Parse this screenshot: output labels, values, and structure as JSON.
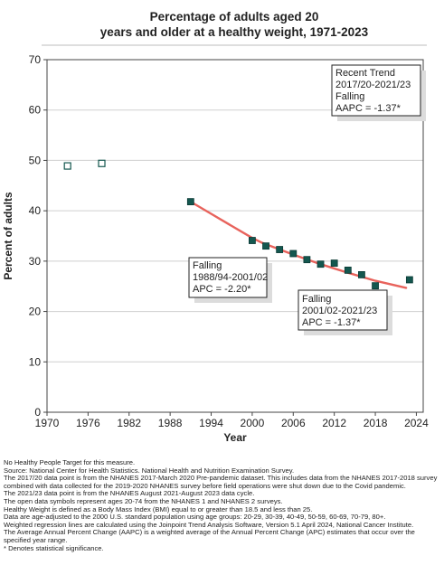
{
  "chart_data": {
    "type": "line",
    "title_lines": [
      "Percentage of adults aged 20",
      "years and older at a healthy weight, 1971-2023"
    ],
    "xlabel": "Year",
    "ylabel": "Percent of adults",
    "xlim": [
      1970,
      2025
    ],
    "ylim": [
      0,
      70
    ],
    "x_ticks": [
      1970,
      1976,
      1982,
      1988,
      1994,
      2000,
      2006,
      2012,
      2018,
      2024
    ],
    "y_ticks": [
      0,
      10,
      20,
      30,
      40,
      50,
      60,
      70
    ],
    "grid": true,
    "open_points": [
      {
        "x": 1973,
        "y": 48.9
      },
      {
        "x": 1978,
        "y": 49.4
      }
    ],
    "filled_points": [
      {
        "x": 1991,
        "y": 41.8
      },
      {
        "x": 2000,
        "y": 34.1
      },
      {
        "x": 2002,
        "y": 33.0
      },
      {
        "x": 2004,
        "y": 32.3
      },
      {
        "x": 2006,
        "y": 31.5
      },
      {
        "x": 2008,
        "y": 30.3
      },
      {
        "x": 2010,
        "y": 29.4
      },
      {
        "x": 2012,
        "y": 29.6
      },
      {
        "x": 2014,
        "y": 28.2
      },
      {
        "x": 2016,
        "y": 27.3
      },
      {
        "x": 2018,
        "y": 25.1
      },
      {
        "x": 2023,
        "y": 26.3
      }
    ],
    "trend_segments": [
      {
        "points": [
          [
            1991,
            41.8
          ],
          [
            1994,
            39.4
          ],
          [
            1997,
            37.0
          ],
          [
            2000,
            34.6
          ],
          [
            2001.5,
            33.6
          ]
        ]
      },
      {
        "points": [
          [
            2001.5,
            33.6
          ],
          [
            2006,
            31.3
          ],
          [
            2010,
            29.4
          ],
          [
            2014,
            27.7
          ],
          [
            2018,
            26.1
          ],
          [
            2022.5,
            24.7
          ]
        ]
      }
    ],
    "annotations": [
      {
        "lines": [
          "Recent Trend",
          "2017/20-2021/23",
          "Falling",
          "AAPC = -1.37*"
        ],
        "anchor": "top-right"
      },
      {
        "lines": [
          "Falling",
          "1988/94-2001/02",
          "APC = -2.20*"
        ],
        "anchor": "mid-left"
      },
      {
        "lines": [
          "Falling",
          "2001/02-2021/23",
          "APC = -1.37*"
        ],
        "anchor": "mid-right"
      }
    ],
    "colors": {
      "filled_marker": "#14574f",
      "open_marker": "#14574f",
      "trend_line": "#e8635c",
      "grid": "#cfcfcf",
      "plot_border": "#444444"
    }
  },
  "notes": [
    "No Healthy People Target for this measure.",
    "Source: National Center for Health Statistics. National Health and Nutrition Examination Survey.",
    "The 2017/20 data point is from the NHANES 2017-March 2020 Pre-pandemic dataset. This includes data from the NHANES 2017-2018 survey combined with data collected for the 2019-2020 NHANES survey before field operations were shut down due to the Covid pandemic.",
    "The 2021/23 data point is from the NHANES August 2021-August 2023 data cycle.",
    "The open data symbols represent ages 20-74 from the NHANES 1 and NHANES 2 surveys.",
    "Healthy Weight is defined as a Body Mass Index (BMI) equal to or greater than 18.5 and less than 25.",
    "Data are age-adjusted to the 2000 U.S. standard population using age groups: 20-29, 30-39, 40-49, 50-59, 60-69, 70-79, 80+.",
    "Weighted regression lines are calculated using the Joinpoint Trend Analysis Software, Version 5.1 April 2024, National Cancer Institute.",
    "The Average Annual Percent Change (AAPC) is a weighted average of the Annual Percent Change (APC) estimates that occur over the specified year range.",
    "* Denotes statistical significance."
  ]
}
